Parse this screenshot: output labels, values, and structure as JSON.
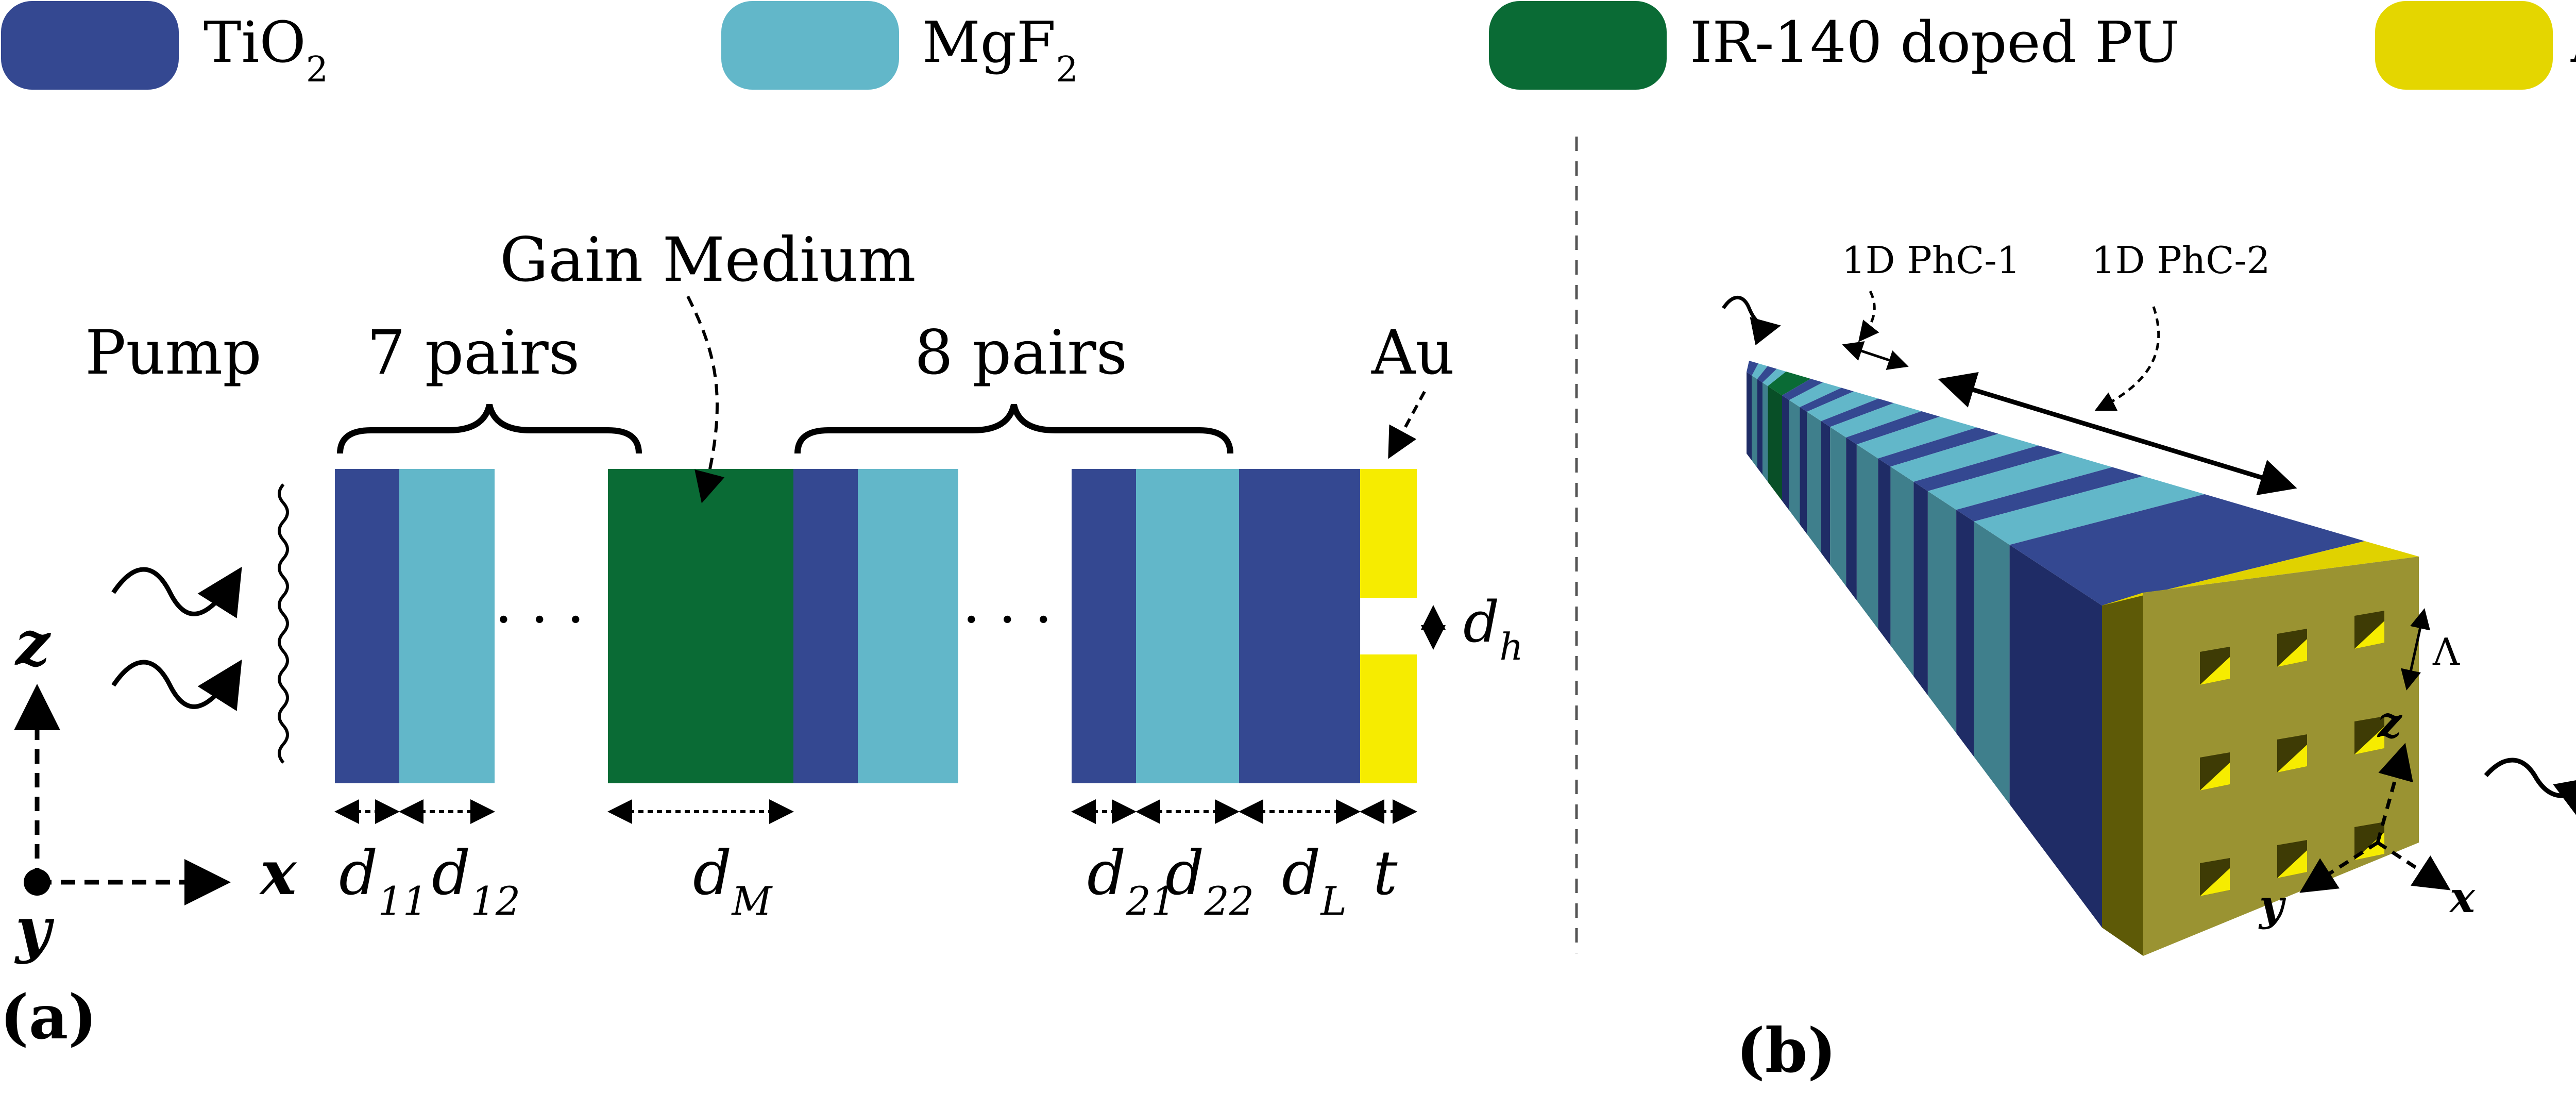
{
  "legend": [
    {
      "base": "TiO",
      "sub": "2",
      "color": "#344891"
    },
    {
      "base": "MgF",
      "sub": "2",
      "color": "#62b7c9"
    },
    {
      "base": "IR-140 doped PU",
      "sub": "",
      "color": "#0a6b35"
    },
    {
      "base": "Au",
      "sub": "",
      "color": "#e4d600"
    }
  ],
  "panel_a": {
    "tag": "(a)",
    "pump": "Pump",
    "pairs_left": "7 pairs",
    "pairs_right": "8 pairs",
    "gain_medium": "Gain Medium",
    "au": "Au",
    "dots": "· · ·",
    "dims": [
      {
        "base": "d",
        "sub": "11"
      },
      {
        "base": "d",
        "sub": "12"
      },
      {
        "base": "d",
        "sub": "M"
      },
      {
        "base": "d",
        "sub": "21"
      },
      {
        "base": "d",
        "sub": "22"
      },
      {
        "base": "d",
        "sub": "L"
      },
      {
        "base": "t",
        "sub": ""
      },
      {
        "base": "d",
        "sub": "h"
      }
    ],
    "axes": {
      "z": "z",
      "x": "x",
      "y": "y"
    }
  },
  "panel_b": {
    "tag": "(b)",
    "phc1": "1D PhC-1",
    "phc2": "1D PhC-2",
    "lambda": "Λ",
    "axes": {
      "z": "z",
      "x": "x",
      "y": "y"
    }
  },
  "colors": {
    "tio2": "#344891",
    "mgf2": "#62b7c9",
    "gain": "#0a6b35",
    "au": "#f6ec00",
    "au_face": "#9a9332",
    "au_side": "#5e5a07",
    "tio2_dark": "#1f2c66",
    "mgf2_dark": "#3f7f8c"
  }
}
